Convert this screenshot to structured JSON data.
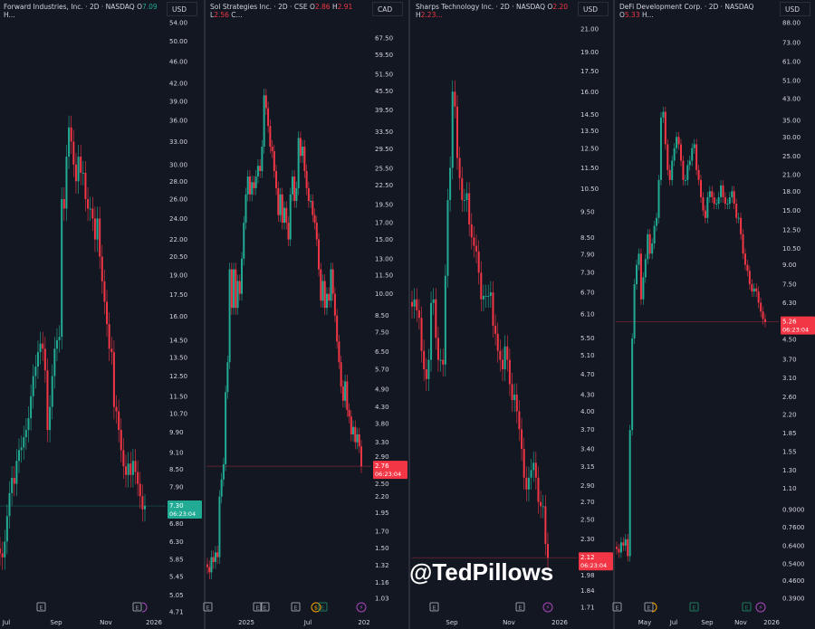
{
  "watermark": "@TedPillows",
  "colors": {
    "up": "#22ab94",
    "down": "#f23645",
    "background": "#131722",
    "earnings": "#9598a1",
    "dividend": "#f7a600",
    "split": "#ab47bc"
  },
  "chart_data": [
    {
      "type": "candlestick",
      "title": "Forward Industries, Inc. · 2D · NASDAQ",
      "open_label": "O",
      "open_value": "7.09",
      "open_dir": "up",
      "more": "H...",
      "currency": "USD",
      "scale": "log",
      "ylim": [
        4.71,
        54.0
      ],
      "yticks": [
        "54.00",
        "50.00",
        "46.00",
        "42.00",
        "39.00",
        "36.00",
        "33.00",
        "30.00",
        "28.00",
        "26.00",
        "24.00",
        "22.00",
        "20.50",
        "19.00",
        "17.50",
        "16.00",
        "14.50",
        "13.50",
        "12.50",
        "11.50",
        "10.70",
        "9.90",
        "9.10",
        "8.50",
        "7.90",
        "6.80",
        "6.30",
        "5.85",
        "5.45",
        "5.05",
        "4.71"
      ],
      "last_price": "7.30",
      "last_dir": "up",
      "countdown": "06:23:04",
      "xticks": [
        "Jul",
        "Sep",
        "Nov",
        "2026"
      ],
      "events": [
        "E",
        "E",
        "split"
      ],
      "closes": [
        6.0,
        5.9,
        6.3,
        7.0,
        7.7,
        8.2,
        8.0,
        8.8,
        9.2,
        9.3,
        9.7,
        10.0,
        10.5,
        11.5,
        12.5,
        13.0,
        13.8,
        14.3,
        14.0,
        12.8,
        10.0,
        11.0,
        12.5,
        14.0,
        14.5,
        14.7,
        26,
        25,
        31,
        35,
        33,
        30,
        28,
        31,
        29,
        29,
        26,
        25,
        25,
        24,
        22,
        24,
        20.5,
        18.5,
        17,
        15.5,
        14,
        13.8,
        11,
        10.8,
        10,
        9.2,
        8.6,
        8.3,
        8.7,
        8.3,
        8.8,
        8.4,
        8.0,
        7.6,
        7.2,
        7.3
      ]
    },
    {
      "type": "candlestick",
      "title": "Sol Strategies Inc. · 2D · CSE",
      "open_label": "O",
      "open_value": "2.86",
      "open_dir": "down",
      "high_label": "H",
      "high_value": "2.91",
      "low_label": "L",
      "low_value": "2.56",
      "more": "C...",
      "currency": "CAD",
      "scale": "log",
      "ylim": [
        1.03,
        67.5
      ],
      "yticks": [
        "67.50",
        "59.50",
        "51.50",
        "45.50",
        "39.50",
        "33.50",
        "29.50",
        "25.50",
        "22.50",
        "19.50",
        "17.00",
        "15.00",
        "13.00",
        "11.50",
        "10.00",
        "8.50",
        "7.50",
        "6.50",
        "5.70",
        "4.90",
        "4.30",
        "3.80",
        "3.30",
        "2.90",
        "2.50",
        "2.20",
        "1.95",
        "1.70",
        "1.50",
        "1.32",
        "1.16",
        "1.03"
      ],
      "last_price": "2.76",
      "last_dir": "down",
      "countdown": "06:23:04",
      "xticks": [
        "2025",
        "Jul",
        "202"
      ],
      "events": [
        "E",
        "E",
        "E",
        "E",
        "dividend",
        "E",
        "split"
      ],
      "closes": [
        1.3,
        1.25,
        1.4,
        1.35,
        1.45,
        1.4,
        2.2,
        2.5,
        2.8,
        4.8,
        6,
        12,
        9,
        12,
        9,
        11,
        10,
        13,
        17,
        21,
        24,
        21,
        23,
        22,
        24,
        26,
        25,
        30,
        44,
        40,
        35,
        30,
        29,
        25,
        22,
        18,
        21,
        17,
        19,
        17,
        15,
        21,
        24,
        20,
        22,
        32,
        28,
        30,
        25,
        22,
        20,
        20,
        18,
        17,
        15,
        12,
        9.5,
        11,
        9,
        10,
        9.5,
        12,
        10,
        8.5,
        7,
        6,
        5,
        4.5,
        5.2,
        4.2,
        4,
        3.5,
        3.7,
        3.3,
        3.5,
        3.2,
        2.76
      ]
    },
    {
      "type": "candlestick",
      "title": "Sharps Technology Inc. · 2D · NASDAQ",
      "open_label": "O",
      "open_value": "2.20",
      "open_dir": "down",
      "high_label": "H",
      "high_value": "2.23...",
      "more": "",
      "currency": "USD",
      "scale": "log",
      "ylim": [
        1.71,
        21.0
      ],
      "yticks": [
        "21.00",
        "19.00",
        "17.50",
        "16.00",
        "14.50",
        "13.50",
        "12.50",
        "11.50",
        "10.50",
        "9.50",
        "8.50",
        "7.90",
        "7.30",
        "6.70",
        "6.10",
        "5.50",
        "5.10",
        "4.70",
        "4.30",
        "4.00",
        "3.70",
        "3.40",
        "3.15",
        "2.90",
        "2.70",
        "2.50",
        "2.30",
        "1.98",
        "1.84",
        "1.71"
      ],
      "last_price": "2.12",
      "last_dir": "down",
      "countdown": "06:23:04",
      "xticks": [
        "Sep",
        "Nov",
        "2026"
      ],
      "events": [
        "E",
        "E",
        "split"
      ],
      "closes": [
        6.3,
        6.5,
        6.2,
        6.0,
        5.2,
        4.8,
        4.6,
        5.0,
        6.4,
        6.5,
        5.5,
        5.0,
        5.0,
        4.9,
        7.2,
        10,
        11.5,
        16,
        15,
        12,
        11,
        10,
        10,
        10.3,
        9,
        8.5,
        8.2,
        8,
        7.3,
        6.5,
        6.6,
        6.6,
        6.6,
        6.7,
        5.8,
        5.6,
        5.2,
        5.0,
        4.8,
        5.3,
        5.0,
        4.5,
        4.2,
        4.3,
        4.0,
        3.7,
        3.4,
        3.0,
        2.85,
        3.0,
        3.1,
        3.2,
        3.0,
        2.7,
        2.65,
        2.65,
        2.25,
        2.12
      ]
    },
    {
      "type": "candlestick",
      "title": "DeFi Development Corp. · 2D · NASDAQ",
      "open_label": "O",
      "open_value": "5.33",
      "open_dir": "down",
      "more": "H...",
      "currency": "USD",
      "scale": "log",
      "ylim": [
        0.39,
        88.0
      ],
      "yticks": [
        "88.00",
        "73.00",
        "61.00",
        "51.00",
        "43.00",
        "35.00",
        "30.00",
        "25.00",
        "21.00",
        "18.00",
        "15.00",
        "12.50",
        "10.50",
        "9.00",
        "7.50",
        "6.30",
        "4.50",
        "3.70",
        "3.10",
        "2.60",
        "2.20",
        "1.85",
        "1.55",
        "1.30",
        "1.10",
        "0.9000",
        "0.7600",
        "0.6400",
        "0.5400",
        "0.4600",
        "0.3900"
      ],
      "last_price": "5.26",
      "last_dir": "down",
      "countdown": "06:23:04",
      "xticks": [
        "May",
        "Jul",
        "Sep",
        "Nov",
        "2026"
      ],
      "events": [
        "E",
        "E",
        "dividend",
        "E",
        "E",
        "split"
      ],
      "closes": [
        0.62,
        0.6,
        0.66,
        0.64,
        0.68,
        0.58,
        1.9,
        4.5,
        7.5,
        9,
        10,
        6.5,
        8,
        9.5,
        12,
        10,
        11,
        13,
        14,
        20,
        36,
        38,
        28,
        22,
        20,
        24,
        27,
        30,
        28,
        24,
        20,
        20,
        23,
        24,
        27,
        28,
        22,
        20,
        17,
        15,
        14,
        17,
        18,
        17,
        16,
        16,
        17,
        19,
        17,
        16,
        16,
        17,
        18,
        16,
        14,
        14,
        12,
        10,
        9,
        8.5,
        7.5,
        7,
        7.2,
        7,
        6.3,
        5.8,
        5.4,
        5.26
      ]
    }
  ]
}
